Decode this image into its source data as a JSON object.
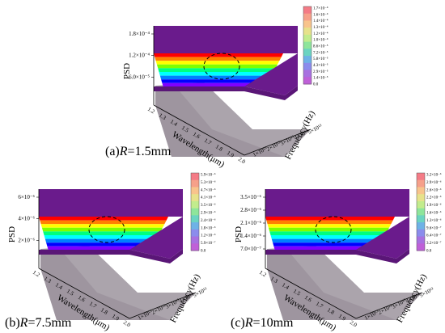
{
  "chart_data": [
    {
      "type": "surface",
      "caption": "(a)R=1.5mm",
      "caption_prefix": "(a)",
      "caption_italic": "R",
      "caption_suffix": "=1.5mm",
      "x_label": "Wavelength(μm)",
      "y_label": "Frequency(Hz)",
      "z_label": "PSD",
      "x_ticks": [
        "1.2",
        "1.3",
        "1.4",
        "1.5",
        "1.6",
        "1.7",
        "1.8",
        "1.9",
        "2.0"
      ],
      "y_ticks": [
        "1×10¹³",
        "2×10¹³",
        "3×10¹³",
        "4×10¹³",
        "5×10¹³"
      ],
      "z_ticks": [
        "6.0×10⁻⁵",
        "1.2×10⁻⁴",
        "1.8×10⁻⁴"
      ],
      "colorbar": [
        "1.7×10⁻⁴",
        "1.6×10⁻⁴",
        "1.4×10⁻⁴",
        "1.3×10⁻⁴",
        "1.2×10⁻⁴",
        "1.0×10⁻⁴",
        "8.6×10⁻⁵",
        "7.2×10⁻⁵",
        "5.8×10⁻⁵",
        "4.3×10⁻⁵",
        "2.9×10⁻⁵",
        "1.4×10⁻⁵",
        "0.0"
      ],
      "annotation": "dashed circle"
    },
    {
      "type": "surface",
      "caption": "(b)R=7.5mm",
      "caption_prefix": "(b)",
      "caption_italic": "R",
      "caption_suffix": "=7.5mm",
      "x_label": "Wavelength(μm)",
      "y_label": "Frequency(Hz)",
      "z_label": "PSD",
      "x_ticks": [
        "1.2",
        "1.3",
        "1.4",
        "1.5",
        "1.6",
        "1.7",
        "1.8",
        "1.9",
        "2.0"
      ],
      "y_ticks": [
        "1×10¹³",
        "2×10¹³",
        "3×10¹³",
        "4×10¹³",
        "5×10¹³"
      ],
      "z_ticks": [
        "2×10⁻⁶",
        "4×10⁻⁶",
        "6×10⁻⁶"
      ],
      "colorbar": [
        "5.9×10⁻⁶",
        "5.3×10⁻⁶",
        "4.7×10⁻⁶",
        "4.1×10⁻⁶",
        "3.5×10⁻⁶",
        "2.9×10⁻⁶",
        "2.4×10⁻⁶",
        "1.8×10⁻⁶",
        "1.2×10⁻⁶",
        "5.9×10⁻⁷",
        "0.0"
      ],
      "annotation": "dashed circle"
    },
    {
      "type": "surface",
      "caption": "(c)R=10mm",
      "caption_prefix": "(c)",
      "caption_italic": "R",
      "caption_suffix": "=10mm",
      "x_label": "Wavelength(μm)",
      "y_label": "Frequency(Hz)",
      "z_label": "PSD",
      "x_ticks": [
        "1.2",
        "1.3",
        "1.4",
        "1.5",
        "1.6",
        "1.7",
        "1.8",
        "1.9",
        "2.0"
      ],
      "y_ticks": [
        "1×10¹³",
        "2×10¹³",
        "3×10¹³",
        "4×10¹³",
        "5×10¹³"
      ],
      "z_ticks": [
        "7.0×10⁻⁷",
        "1.4×10⁻⁶",
        "2.1×10⁻⁶",
        "2.8×10⁻⁶",
        "3.5×10⁻⁶"
      ],
      "colorbar": [
        "3.2×10⁻⁶",
        "2.9×10⁻⁶",
        "2.6×10⁻⁶",
        "2.2×10⁻⁶",
        "1.9×10⁻⁶",
        "1.6×10⁻⁶",
        "1.3×10⁻⁶",
        "9.6×10⁻⁷",
        "6.4×10⁻⁷",
        "3.2×10⁻⁷",
        "0.0"
      ],
      "annotation": "dashed circle"
    }
  ],
  "colors": {
    "surface_top": "#6a1b8c",
    "surface_edge": "#5a1677",
    "shadow": "#8f8590",
    "rainbow": [
      "#ff0000",
      "#ff8000",
      "#ffff00",
      "#7fff00",
      "#00ff7f",
      "#00ffff",
      "#007fff",
      "#0000ff",
      "#7f00ff"
    ],
    "colorbar": [
      "#f47b86",
      "#f6a08a",
      "#f8c48c",
      "#e7e28b",
      "#c2ec8d",
      "#8ee59b",
      "#6bd4c1",
      "#6eb2e6",
      "#8b8cec",
      "#a870e0",
      "#bf60d8"
    ]
  }
}
